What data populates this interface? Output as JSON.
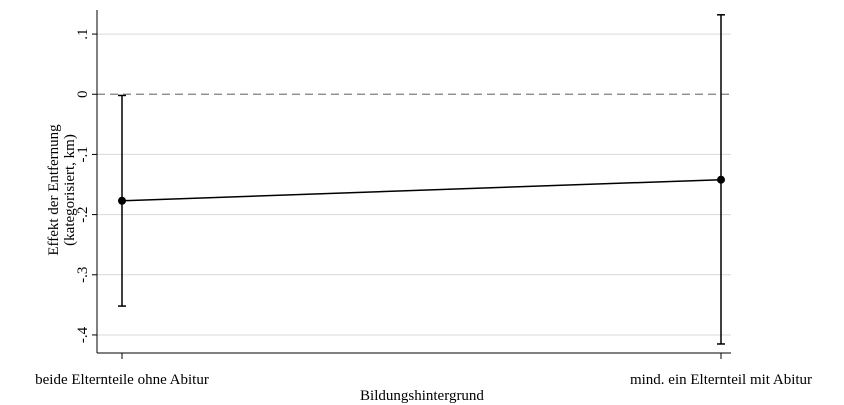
{
  "chart_data": {
    "type": "line",
    "title": "",
    "xlabel": "Bildungshintergrund",
    "ylabel_lines": [
      "Effekt der Entfernung",
      "(kategorisiert, km)"
    ],
    "categories": [
      "beide Elternteile ohne Abitur",
      "mind. ein Elternteil mit Abitur"
    ],
    "series": [
      {
        "values": [
          -0.177,
          -0.142
        ],
        "ci_lower": [
          -0.352,
          -0.415
        ],
        "ci_upper": [
          -0.002,
          0.132
        ]
      }
    ],
    "yticks": [
      0.1,
      0,
      -0.1,
      -0.2,
      -0.3,
      -0.4
    ],
    "ytick_labels": [
      ".1",
      "0",
      "-.1",
      "-.2",
      "-.3",
      "-.4"
    ],
    "ylim": [
      -0.43,
      0.14
    ],
    "reference_line": 0,
    "grid": true,
    "legend": "none",
    "colors": {
      "line": "#000000",
      "grid": "#d9d9d9",
      "reference": "#7f7f7f"
    }
  }
}
